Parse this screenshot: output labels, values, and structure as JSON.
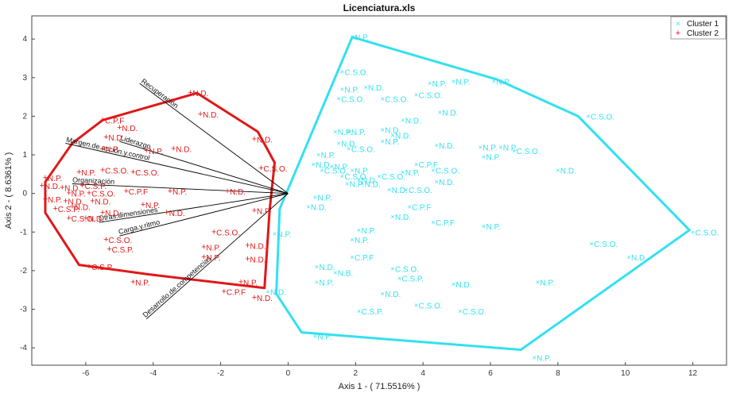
{
  "chart_data": {
    "type": "scatter",
    "title": "Licenciatura.xls",
    "xlabel": "Axis 1 - ( 71.5516% )",
    "ylabel": "Axis 2 - ( 8.6361% )",
    "xlim": [
      -7.6,
      13.0
    ],
    "ylim": [
      -4.45,
      4.6
    ],
    "xticks": [
      -6,
      -4,
      -2,
      0,
      2,
      4,
      6,
      8,
      10,
      12
    ],
    "yticks": [
      -4,
      -3,
      -2,
      -1,
      0,
      1,
      2,
      3,
      4
    ],
    "grid": false,
    "legend_position": "top-right",
    "colors": {
      "cluster1": "#33e0f0",
      "cluster2": "#e01818",
      "vectors": "#000000"
    },
    "series": [
      {
        "name": "Cluster 1",
        "marker": "x",
        "points": [
          {
            "x": 1.9,
            "y": 4.05,
            "label": "N.P."
          },
          {
            "x": 1.6,
            "y": 3.15,
            "label": "C.S.O."
          },
          {
            "x": 1.6,
            "y": 2.7,
            "label": "N.P."
          },
          {
            "x": 2.3,
            "y": 2.75,
            "label": "N.D."
          },
          {
            "x": 1.5,
            "y": 2.45,
            "label": "C.S.O."
          },
          {
            "x": 2.8,
            "y": 2.45,
            "label": "C.S.O."
          },
          {
            "x": 4.2,
            "y": 2.85,
            "label": "N.P."
          },
          {
            "x": 4.9,
            "y": 2.9,
            "label": "N.P."
          },
          {
            "x": 6.1,
            "y": 2.9,
            "label": "N.P."
          },
          {
            "x": 3.8,
            "y": 2.55,
            "label": "C.S.O."
          },
          {
            "x": 4.5,
            "y": 2.1,
            "label": "N.D."
          },
          {
            "x": 3.4,
            "y": 1.9,
            "label": "N.D."
          },
          {
            "x": 1.4,
            "y": 1.6,
            "label": "N.P."
          },
          {
            "x": 1.8,
            "y": 1.6,
            "label": "N.P."
          },
          {
            "x": 2.8,
            "y": 1.65,
            "label": "N.D."
          },
          {
            "x": 3.1,
            "y": 1.5,
            "label": "N.D."
          },
          {
            "x": 1.5,
            "y": 1.3,
            "label": "N.D."
          },
          {
            "x": 2.8,
            "y": 1.35,
            "label": "N.P."
          },
          {
            "x": 1.8,
            "y": 1.15,
            "label": "C.S.O."
          },
          {
            "x": 0.9,
            "y": 1.0,
            "label": "N.P."
          },
          {
            "x": 4.4,
            "y": 1.25,
            "label": "N.D."
          },
          {
            "x": 5.7,
            "y": 1.2,
            "label": "N.P."
          },
          {
            "x": 6.3,
            "y": 1.2,
            "label": "N.P."
          },
          {
            "x": 6.7,
            "y": 1.1,
            "label": "C.S.O."
          },
          {
            "x": 5.8,
            "y": 0.95,
            "label": "N.P."
          },
          {
            "x": 0.75,
            "y": 0.75,
            "label": "N.D."
          },
          {
            "x": 1.3,
            "y": 0.7,
            "label": "N.P."
          },
          {
            "x": 1.9,
            "y": 0.6,
            "label": "N.P."
          },
          {
            "x": 1.0,
            "y": 0.6,
            "label": "C.S.O."
          },
          {
            "x": 1.6,
            "y": 0.45,
            "label": "C.S.O."
          },
          {
            "x": 3.8,
            "y": 0.75,
            "label": "C.P.F"
          },
          {
            "x": 4.3,
            "y": 0.6,
            "label": "C.S.O."
          },
          {
            "x": 3.4,
            "y": 0.55,
            "label": "N.P."
          },
          {
            "x": 2.7,
            "y": 0.45,
            "label": "C.S.O."
          },
          {
            "x": 2.1,
            "y": 0.35,
            "label": "N.D."
          },
          {
            "x": 1.75,
            "y": 0.25,
            "label": "N.P."
          },
          {
            "x": 2.2,
            "y": 0.25,
            "label": "N.D."
          },
          {
            "x": 4.4,
            "y": 0.3,
            "label": "N.D."
          },
          {
            "x": 3.5,
            "y": 0.1,
            "label": "C.S.O."
          },
          {
            "x": 3.0,
            "y": 0.1,
            "label": "N.D."
          },
          {
            "x": 8.0,
            "y": 0.6,
            "label": "N.D."
          },
          {
            "x": 0.8,
            "y": -0.1,
            "label": "N.P."
          },
          {
            "x": 0.6,
            "y": -0.35,
            "label": "N.D."
          },
          {
            "x": 3.6,
            "y": -0.35,
            "label": "C.P.F"
          },
          {
            "x": 3.1,
            "y": -0.6,
            "label": "N.D."
          },
          {
            "x": 4.3,
            "y": -0.75,
            "label": "C.P.F"
          },
          {
            "x": 5.8,
            "y": -0.85,
            "label": "N.P."
          },
          {
            "x": 2.1,
            "y": -0.95,
            "label": "N.P."
          },
          {
            "x": 1.9,
            "y": -1.2,
            "label": "N.P."
          },
          {
            "x": 12.0,
            "y": -1.0,
            "label": "C.S.O."
          },
          {
            "x": 9.0,
            "y": -1.3,
            "label": "C.S.O."
          },
          {
            "x": 10.1,
            "y": -1.65,
            "label": "N.D."
          },
          {
            "x": 1.9,
            "y": -1.65,
            "label": "C.P.F"
          },
          {
            "x": 0.85,
            "y": -1.9,
            "label": "N.D."
          },
          {
            "x": 1.4,
            "y": -2.05,
            "label": "N.B."
          },
          {
            "x": 3.1,
            "y": -1.95,
            "label": "C.S.O."
          },
          {
            "x": 3.3,
            "y": -2.2,
            "label": "C.S.P."
          },
          {
            "x": 0.85,
            "y": -2.3,
            "label": "N.P."
          },
          {
            "x": 4.9,
            "y": -2.35,
            "label": "N.D."
          },
          {
            "x": 7.4,
            "y": -2.3,
            "label": "N.P."
          },
          {
            "x": 2.8,
            "y": -2.6,
            "label": "N.D."
          },
          {
            "x": 3.8,
            "y": -2.9,
            "label": "C.S.O."
          },
          {
            "x": 2.1,
            "y": -3.05,
            "label": "C.S.P."
          },
          {
            "x": 5.1,
            "y": -3.05,
            "label": "C.S.O."
          },
          {
            "x": 0.8,
            "y": -3.7,
            "label": "N.P."
          },
          {
            "x": 7.3,
            "y": -4.25,
            "label": "N.P."
          },
          {
            "x": 8.9,
            "y": 2.0,
            "label": "C.S.O."
          },
          {
            "x": -0.4,
            "y": -1.05,
            "label": "N.P."
          },
          {
            "x": -0.6,
            "y": -2.55,
            "label": "N.D."
          }
        ]
      },
      {
        "name": "Cluster 2",
        "marker": "+",
        "points": [
          {
            "x": -2.9,
            "y": 2.6,
            "label": "N.D."
          },
          {
            "x": -2.6,
            "y": 2.05,
            "label": "N.D."
          },
          {
            "x": -5.5,
            "y": 1.9,
            "label": "C.P.F"
          },
          {
            "x": -5.0,
            "y": 1.7,
            "label": "N.D."
          },
          {
            "x": -5.4,
            "y": 1.45,
            "label": "N.D."
          },
          {
            "x": -1.0,
            "y": 1.4,
            "label": "N.D."
          },
          {
            "x": -5.5,
            "y": 1.15,
            "label": "N.P."
          },
          {
            "x": -4.2,
            "y": 1.1,
            "label": "N.P."
          },
          {
            "x": -3.4,
            "y": 1.15,
            "label": "N.D."
          },
          {
            "x": -0.8,
            "y": 0.65,
            "label": "C.S.O."
          },
          {
            "x": -4.6,
            "y": 0.55,
            "label": "C.S.O."
          },
          {
            "x": -5.5,
            "y": 0.6,
            "label": "C.S.O."
          },
          {
            "x": -6.2,
            "y": 0.55,
            "label": "N.P."
          },
          {
            "x": -7.2,
            "y": 0.4,
            "label": "N.P."
          },
          {
            "x": -7.3,
            "y": 0.2,
            "label": "N.D."
          },
          {
            "x": -6.7,
            "y": 0.15,
            "label": "N.D."
          },
          {
            "x": -6.1,
            "y": 0.2,
            "label": "C.S.P."
          },
          {
            "x": -6.5,
            "y": 0.0,
            "label": "N.P."
          },
          {
            "x": -5.9,
            "y": 0.0,
            "label": "C.S.O."
          },
          {
            "x": -4.8,
            "y": 0.05,
            "label": "C.P.F"
          },
          {
            "x": -3.5,
            "y": 0.05,
            "label": "N.P."
          },
          {
            "x": -1.8,
            "y": 0.05,
            "label": "N.D."
          },
          {
            "x": -7.2,
            "y": -0.15,
            "label": "N.P."
          },
          {
            "x": -6.6,
            "y": -0.2,
            "label": "N.D."
          },
          {
            "x": -5.8,
            "y": -0.2,
            "label": "N.D."
          },
          {
            "x": -4.3,
            "y": -0.3,
            "label": "N.P."
          },
          {
            "x": -6.9,
            "y": -0.4,
            "label": "C.S.P."
          },
          {
            "x": -6.4,
            "y": -0.35,
            "label": "N.D."
          },
          {
            "x": -5.5,
            "y": -0.5,
            "label": "N.D."
          },
          {
            "x": -3.6,
            "y": -0.5,
            "label": "N.D."
          },
          {
            "x": -1.0,
            "y": -0.45,
            "label": "N.P."
          },
          {
            "x": -6.5,
            "y": -0.65,
            "label": "C.S.O."
          },
          {
            "x": -6.0,
            "y": -0.65,
            "label": "N.D."
          },
          {
            "x": -2.2,
            "y": -1.0,
            "label": "C.S.O."
          },
          {
            "x": -5.4,
            "y": -1.2,
            "label": "C.S.O."
          },
          {
            "x": -5.3,
            "y": -1.45,
            "label": "C.S.P."
          },
          {
            "x": -2.5,
            "y": -1.4,
            "label": "N.P."
          },
          {
            "x": -2.5,
            "y": -1.65,
            "label": "N.P."
          },
          {
            "x": -1.2,
            "y": -1.35,
            "label": "N.D."
          },
          {
            "x": -1.2,
            "y": -1.7,
            "label": "N.D."
          },
          {
            "x": -5.9,
            "y": -1.9,
            "label": "C.S.P."
          },
          {
            "x": -4.6,
            "y": -2.3,
            "label": "N.P."
          },
          {
            "x": -1.4,
            "y": -2.3,
            "label": "N.P."
          },
          {
            "x": -1.9,
            "y": -2.55,
            "label": "C.P.F"
          },
          {
            "x": -1.0,
            "y": -2.7,
            "label": "N.D."
          }
        ]
      }
    ],
    "vectors": [
      {
        "label": "Recuperación",
        "x": -4.4,
        "y": 2.85
      },
      {
        "label": "Liderazgo",
        "x": -5.0,
        "y": 1.35
      },
      {
        "label": "Margen.de.acción.y.control",
        "x": -6.6,
        "y": 1.3
      },
      {
        "label": "Organización",
        "x": -6.4,
        "y": 0.25
      },
      {
        "label": "Otras.dimensiones",
        "x": -5.6,
        "y": -0.75
      },
      {
        "label": "Carga.y.ritmo",
        "x": -5.0,
        "y": -1.1
      },
      {
        "label": "Desarrollo.de.competencias",
        "x": -4.2,
        "y": -3.25
      }
    ],
    "hulls": [
      {
        "series": "Cluster 1",
        "vertices": [
          [
            1.9,
            4.05
          ],
          [
            6.2,
            2.95
          ],
          [
            8.6,
            2.0
          ],
          [
            11.9,
            -0.95
          ],
          [
            6.9,
            -4.05
          ],
          [
            0.4,
            -3.6
          ],
          [
            -0.35,
            -2.6
          ],
          [
            -0.25,
            -0.4
          ]
        ]
      },
      {
        "series": "Cluster 2",
        "vertices": [
          [
            -2.7,
            2.6
          ],
          [
            -0.9,
            1.6
          ],
          [
            -0.4,
            0.8
          ],
          [
            -0.55,
            -0.45
          ],
          [
            -0.7,
            -2.45
          ],
          [
            -4.1,
            -2.1
          ],
          [
            -6.2,
            -1.85
          ],
          [
            -7.2,
            -0.5
          ],
          [
            -7.2,
            0.3
          ],
          [
            -6.4,
            1.3
          ],
          [
            -5.5,
            1.9
          ]
        ]
      }
    ]
  }
}
